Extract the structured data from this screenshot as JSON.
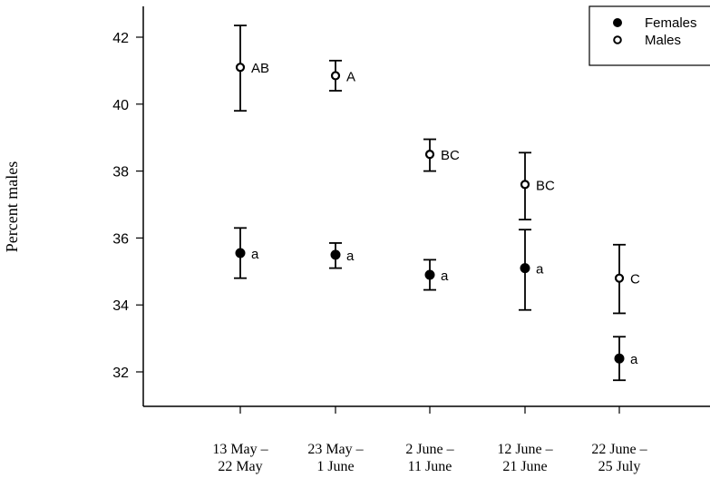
{
  "chart_data": {
    "type": "scatter",
    "ylabel": "Percent males",
    "xlabel": "",
    "ylim": [
      31,
      43
    ],
    "yticks": [
      32,
      34,
      36,
      38,
      40,
      42
    ],
    "categories": [
      [
        "13 May –",
        "22 May"
      ],
      [
        "23 May –",
        "1 June"
      ],
      [
        "2 June –",
        "11 June"
      ],
      [
        "12 June –",
        "21 June"
      ],
      [
        "22 June –",
        "25 July"
      ]
    ],
    "legend": {
      "position": "top-right"
    },
    "series": [
      {
        "name": "Females",
        "marker": "filled-circle",
        "values": [
          35.55,
          35.5,
          34.9,
          35.1,
          32.4
        ],
        "lower": [
          34.8,
          35.1,
          34.45,
          33.85,
          31.75
        ],
        "upper": [
          36.3,
          35.85,
          35.35,
          36.25,
          33.05
        ],
        "letters": [
          "a",
          "a",
          "a",
          "a",
          "a"
        ]
      },
      {
        "name": "Males",
        "marker": "open-circle",
        "values": [
          41.1,
          40.85,
          38.5,
          37.6,
          34.8
        ],
        "lower": [
          39.8,
          40.4,
          38.0,
          36.55,
          33.75
        ],
        "upper": [
          42.35,
          41.3,
          38.95,
          38.55,
          35.8
        ],
        "letters": [
          "AB",
          "A",
          "BC",
          "BC",
          "C"
        ]
      }
    ]
  }
}
